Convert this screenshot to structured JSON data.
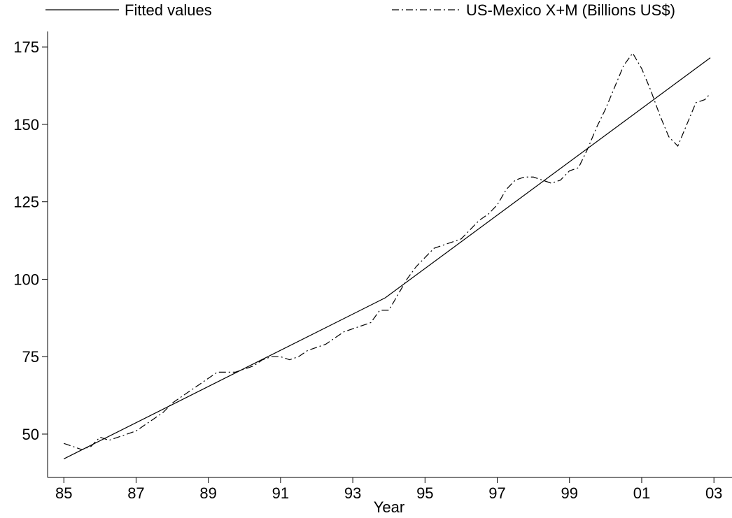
{
  "chart_data": {
    "type": "line",
    "x_label": "Year",
    "xlim": [
      1984.55,
      2003.5
    ],
    "ylim": [
      36,
      180
    ],
    "xticks": [
      {
        "value": 1985,
        "label": "85"
      },
      {
        "value": 1987,
        "label": "87"
      },
      {
        "value": 1989,
        "label": "89"
      },
      {
        "value": 1991,
        "label": "91"
      },
      {
        "value": 1993,
        "label": "93"
      },
      {
        "value": 1995,
        "label": "95"
      },
      {
        "value": 1997,
        "label": "97"
      },
      {
        "value": 1999,
        "label": "99"
      },
      {
        "value": 2001,
        "label": "01"
      },
      {
        "value": 2003,
        "label": "03"
      }
    ],
    "yticks": [
      50,
      75,
      100,
      125,
      150,
      175
    ],
    "series": [
      {
        "name": "Fitted values",
        "color": "#000000",
        "dash": "solid",
        "x": [
          1985.0,
          1993.9,
          2002.9
        ],
        "values": [
          42,
          94,
          171.5
        ]
      },
      {
        "name": "US-Mexico X+M (Billions US$)",
        "color": "#000000",
        "dash": "dashdot",
        "x": [
          1985.0,
          1985.25,
          1985.5,
          1985.75,
          1986.0,
          1986.25,
          1986.5,
          1986.75,
          1987.0,
          1987.25,
          1987.5,
          1987.75,
          1988.0,
          1988.25,
          1988.5,
          1988.75,
          1989.0,
          1989.25,
          1989.5,
          1989.75,
          1990.0,
          1990.25,
          1990.5,
          1990.75,
          1991.0,
          1991.25,
          1991.5,
          1991.75,
          1992.0,
          1992.25,
          1992.5,
          1992.75,
          1993.0,
          1993.25,
          1993.5,
          1993.75,
          1994.0,
          1994.25,
          1994.5,
          1994.75,
          1995.0,
          1995.25,
          1995.5,
          1995.75,
          1996.0,
          1996.25,
          1996.5,
          1996.75,
          1997.0,
          1997.25,
          1997.5,
          1997.75,
          1998.0,
          1998.25,
          1998.5,
          1998.75,
          1999.0,
          1999.25,
          1999.5,
          1999.75,
          2000.0,
          2000.25,
          2000.5,
          2000.75,
          2001.0,
          2001.25,
          2001.5,
          2001.75,
          2002.0,
          2002.25,
          2002.5,
          2002.75,
          2002.9
        ],
        "values": [
          47,
          46,
          45,
          46,
          49,
          48,
          49,
          50,
          51,
          53,
          55,
          57,
          60,
          62,
          64,
          66,
          68,
          70,
          70,
          70,
          71,
          72,
          74,
          75,
          75,
          74,
          75,
          77,
          78,
          79,
          81,
          83,
          84,
          85,
          86,
          90,
          90,
          95,
          100,
          104,
          107,
          110,
          111,
          112,
          113,
          116,
          119,
          121,
          124,
          129,
          132,
          133,
          133,
          132,
          131,
          132,
          135,
          136,
          142,
          149,
          155,
          162,
          169,
          173,
          168,
          161,
          153,
          146,
          143,
          150,
          157,
          158,
          160
        ]
      }
    ]
  }
}
